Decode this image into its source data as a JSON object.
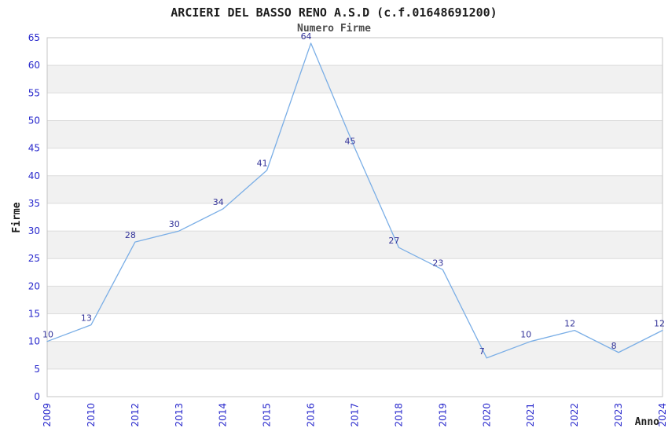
{
  "page": {
    "background": "#ffffff"
  },
  "chart_data": {
    "type": "line",
    "title": "ARCIERI DEL BASSO RENO A.S.D (c.f.01648691200)",
    "subtitle": "Numero Firme",
    "xlabel": "Anno",
    "ylabel": "Firme",
    "categories": [
      "2009",
      "2010",
      "2012",
      "2013",
      "2014",
      "2015",
      "2016",
      "2017",
      "2018",
      "2019",
      "2020",
      "2021",
      "2022",
      "2023",
      "2024"
    ],
    "values": [
      10,
      13,
      28,
      30,
      34,
      41,
      64,
      45,
      27,
      23,
      7,
      10,
      12,
      8,
      12
    ],
    "data_labels_shown": true,
    "ylim": [
      0,
      65
    ],
    "ytick_step": 5,
    "yticks": [
      0,
      5,
      10,
      15,
      20,
      25,
      30,
      35,
      40,
      45,
      50,
      55,
      60,
      65
    ],
    "grid": true,
    "band_fill": "alternating-horizontal",
    "legend": "none",
    "colors": {
      "line": "#7aaee6",
      "tick_label": "#2727cc",
      "data_label": "#333399",
      "band": "#f1f1f1",
      "gridline": "#dcdcdc",
      "plot_border": "#c4c4c4",
      "plot_background": "#ffffff",
      "title": "#1c1c1c",
      "subtitle": "#4d4d4d",
      "axis_title": "#1c1c1c"
    }
  }
}
